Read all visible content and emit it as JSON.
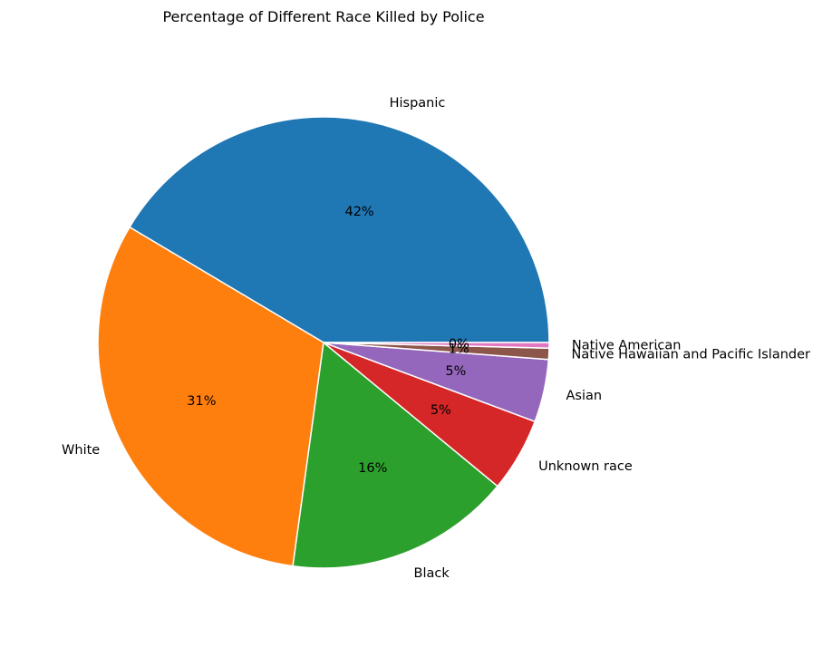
{
  "chart_data": {
    "type": "pie",
    "title": "Percentage of Different Race Killed by Police",
    "categories": [
      "Hispanic",
      "White",
      "Black",
      "Unknown race",
      "Asian",
      "Native Hawaiian and Pacific Islander",
      "Native American"
    ],
    "values": [
      41.5,
      31.4,
      16.2,
      5.3,
      4.5,
      0.8,
      0.4
    ],
    "autopct_labels": [
      "42%",
      "31%",
      "16%",
      "5%",
      "5%",
      "1%",
      "0%"
    ],
    "start_angle_deg": 0,
    "direction": "counterclockwise",
    "colors": [
      "#1f77b4",
      "#ff7f0e",
      "#2ca02c",
      "#d62728",
      "#9467bd",
      "#8c564b",
      "#e377c2"
    ],
    "wedge_edge_color": "#ffffff"
  }
}
